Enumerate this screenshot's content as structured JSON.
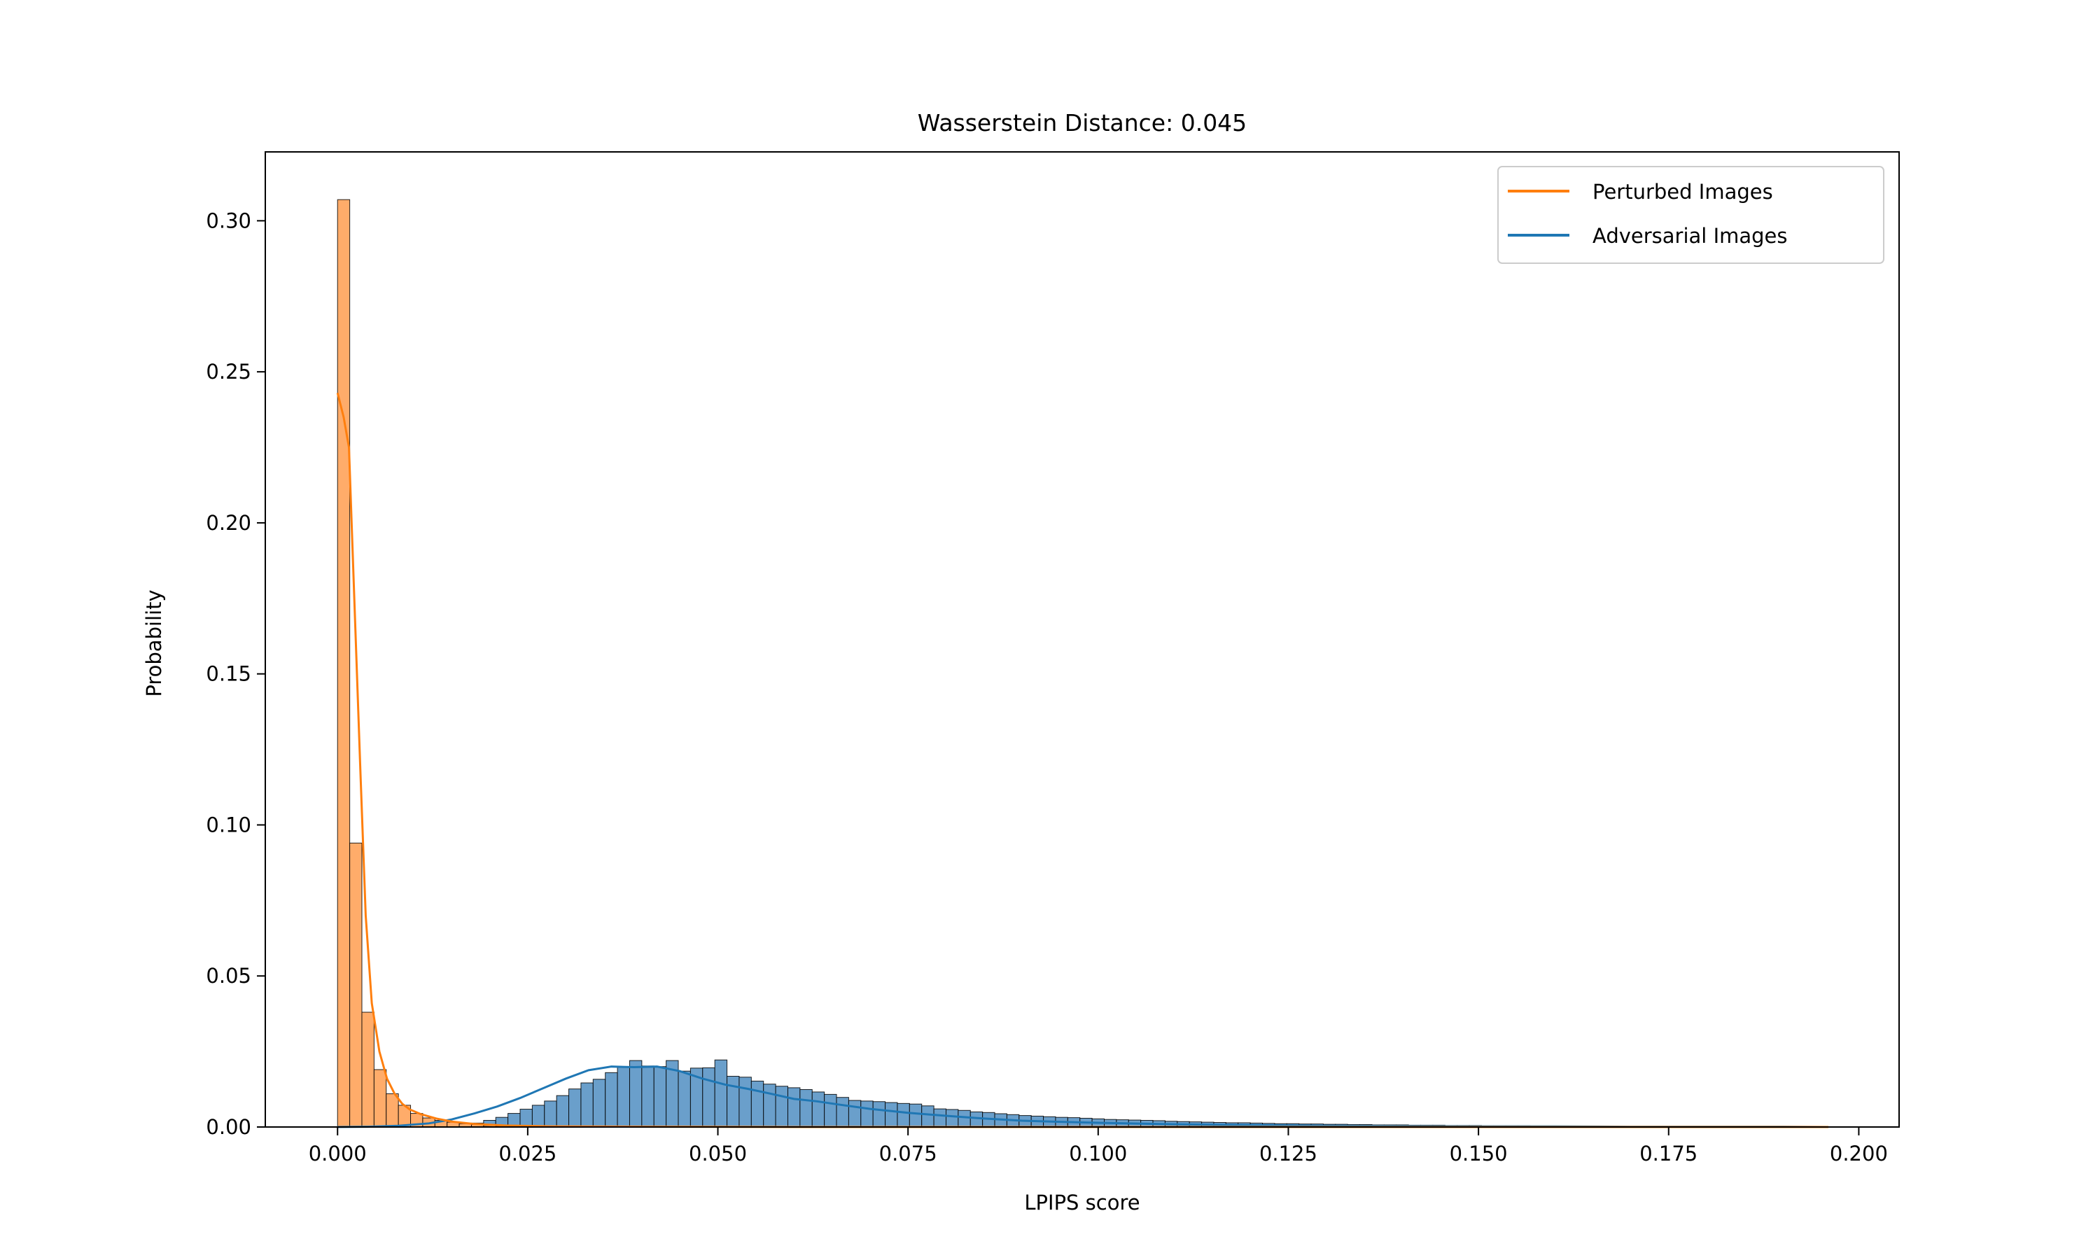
{
  "chart_data": {
    "type": "histogram",
    "title": "Wasserstein Distance: 0.045",
    "xlabel": "LPIPS score",
    "ylabel": "Probability",
    "xlim": [
      -0.0095,
      0.2053
    ],
    "ylim": [
      0,
      0.3228
    ],
    "xticks": [
      "0.000",
      "0.025",
      "0.050",
      "0.075",
      "0.100",
      "0.125",
      "0.150",
      "0.175",
      "0.200"
    ],
    "xtick_values": [
      0,
      0.025,
      0.05,
      0.075,
      0.1,
      0.125,
      0.15,
      0.175,
      0.2
    ],
    "yticks": [
      "0.00",
      "0.05",
      "0.10",
      "0.15",
      "0.20",
      "0.25",
      "0.30"
    ],
    "ytick_values": [
      0,
      0.05,
      0.1,
      0.15,
      0.2,
      0.25,
      0.3
    ],
    "grid": false,
    "legend_position": "top-right",
    "legend": [
      "Perturbed Images",
      "Adversarial Images"
    ],
    "bin_width": 0.0016,
    "series": [
      {
        "name": "Adversarial Images",
        "color": "#1f77b4",
        "bin_start": 0.0,
        "values": [
          0,
          0,
          0,
          0,
          0,
          0,
          0,
          0.0001,
          0.0002,
          0.0004,
          0.0008,
          0.0013,
          0.0022,
          0.0032,
          0.0045,
          0.0059,
          0.0072,
          0.0086,
          0.0104,
          0.0126,
          0.0146,
          0.0158,
          0.018,
          0.0198,
          0.022,
          0.0202,
          0.02,
          0.022,
          0.0185,
          0.0195,
          0.0196,
          0.0222,
          0.0168,
          0.0165,
          0.0152,
          0.0142,
          0.0135,
          0.013,
          0.0124,
          0.0116,
          0.0108,
          0.0098,
          0.0088,
          0.0086,
          0.0084,
          0.0081,
          0.0078,
          0.0076,
          0.007,
          0.006,
          0.0058,
          0.0055,
          0.005,
          0.0048,
          0.0044,
          0.0041,
          0.0038,
          0.0036,
          0.0034,
          0.0032,
          0.0031,
          0.0029,
          0.0027,
          0.0025,
          0.0024,
          0.0023,
          0.0022,
          0.0021,
          0.0019,
          0.0018,
          0.0017,
          0.0016,
          0.0015,
          0.0014,
          0.0014,
          0.0013,
          0.0012,
          0.0011,
          0.0011,
          0.001,
          0.001,
          0.0009,
          0.0009,
          0.0008,
          0.0008,
          0.0007,
          0.0007,
          0.0007,
          0.0006,
          0.0006,
          0.0006,
          0.0005,
          0.0005,
          0.0005,
          0.0004,
          0.0004,
          0.0004,
          0.0004,
          0.0003,
          0.0003,
          0.0003,
          0.0003,
          0.0003,
          0.0002,
          0.0002,
          0.0002,
          0.0002,
          0.0002,
          0.0002,
          0.0002,
          0.0001,
          0.0001,
          0.0001,
          0.0001,
          0.0001,
          0.0001,
          0.0001,
          0.0001,
          0.0001,
          0.0001,
          0.0001,
          0.0001
        ],
        "kde": [
          [
            0.0,
            0.0
          ],
          [
            0.004,
            0.0001
          ],
          [
            0.008,
            0.0004
          ],
          [
            0.012,
            0.0012
          ],
          [
            0.015,
            0.0025
          ],
          [
            0.018,
            0.0045
          ],
          [
            0.021,
            0.0068
          ],
          [
            0.024,
            0.0096
          ],
          [
            0.027,
            0.0128
          ],
          [
            0.03,
            0.016
          ],
          [
            0.033,
            0.0188
          ],
          [
            0.036,
            0.02
          ],
          [
            0.039,
            0.0198
          ],
          [
            0.042,
            0.02
          ],
          [
            0.045,
            0.0185
          ],
          [
            0.048,
            0.016
          ],
          [
            0.051,
            0.014
          ],
          [
            0.054,
            0.0126
          ],
          [
            0.057,
            0.011
          ],
          [
            0.06,
            0.0093
          ],
          [
            0.063,
            0.0085
          ],
          [
            0.066,
            0.0074
          ],
          [
            0.07,
            0.006
          ],
          [
            0.075,
            0.0047
          ],
          [
            0.08,
            0.0037
          ],
          [
            0.085,
            0.0028
          ],
          [
            0.09,
            0.0021
          ],
          [
            0.095,
            0.0017
          ],
          [
            0.1,
            0.0014
          ],
          [
            0.11,
            0.0009
          ],
          [
            0.12,
            0.0006
          ],
          [
            0.13,
            0.0004
          ],
          [
            0.14,
            0.0003
          ],
          [
            0.15,
            0.0002
          ],
          [
            0.16,
            0.0002
          ],
          [
            0.17,
            0.0001
          ],
          [
            0.18,
            0.0001
          ],
          [
            0.19,
            0.0001
          ],
          [
            0.196,
            0.0
          ]
        ]
      },
      {
        "name": "Perturbed Images",
        "color": "#ff7f0e",
        "bin_start": 0.0,
        "values": [
          0.307,
          0.094,
          0.038,
          0.019,
          0.011,
          0.0072,
          0.0045,
          0.003,
          0.0022,
          0.0016,
          0.0011,
          0.0008,
          0.0005,
          0.0003,
          0.0002,
          0.0001
        ],
        "kde": [
          [
            0.0,
            0.243
          ],
          [
            0.0008,
            0.235
          ],
          [
            0.0015,
            0.225
          ],
          [
            0.0022,
            0.175
          ],
          [
            0.003,
            0.118
          ],
          [
            0.0037,
            0.07
          ],
          [
            0.0045,
            0.041
          ],
          [
            0.0055,
            0.025
          ],
          [
            0.0065,
            0.016
          ],
          [
            0.0075,
            0.011
          ],
          [
            0.0085,
            0.0077
          ],
          [
            0.0095,
            0.0058
          ],
          [
            0.011,
            0.0042
          ],
          [
            0.013,
            0.0028
          ],
          [
            0.015,
            0.0018
          ],
          [
            0.018,
            0.001
          ],
          [
            0.022,
            0.0005
          ],
          [
            0.028,
            0.0002
          ],
          [
            0.04,
            0.0001
          ],
          [
            0.06,
            0.0
          ],
          [
            0.196,
            0.0
          ]
        ]
      }
    ]
  }
}
